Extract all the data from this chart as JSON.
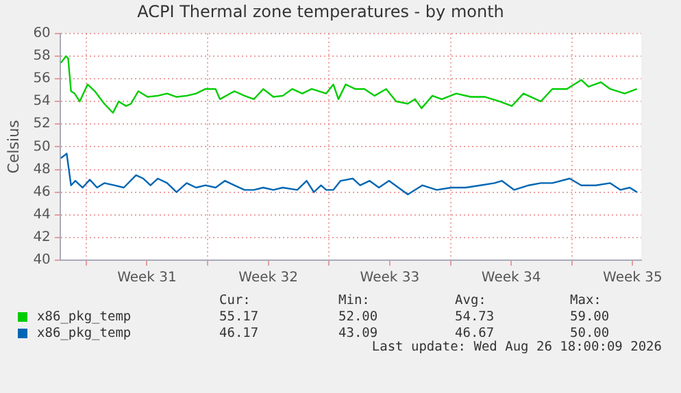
{
  "chart_data": {
    "type": "line",
    "title": "ACPI Thermal zone temperatures - by month",
    "ylabel": "Celsius",
    "xlim": [
      "2026-07-25T12:00",
      "2026-08-28T00:00"
    ],
    "xticks": [
      {
        "value": "2026-07-27",
        "label": null
      },
      {
        "value": "2026-07-30T12:00",
        "label": "Week 31"
      },
      {
        "value": "2026-08-03",
        "label": null
      },
      {
        "value": "2026-08-06T12:00",
        "label": "Week 32"
      },
      {
        "value": "2026-08-10",
        "label": null
      },
      {
        "value": "2026-08-13T12:00",
        "label": "Week 33"
      },
      {
        "value": "2026-08-17",
        "label": null
      },
      {
        "value": "2026-08-20T12:00",
        "label": "Week 34"
      },
      {
        "value": "2026-08-24",
        "label": null
      },
      {
        "value": "2026-08-27T12:00",
        "label": "Week 35"
      }
    ],
    "ylim": [
      40,
      60
    ],
    "yticks": [
      40,
      42,
      44,
      46,
      48,
      50,
      52,
      54,
      56,
      58,
      60
    ],
    "grid": true,
    "legend": "bottom",
    "marker": "none",
    "line_style": "solid",
    "series": [
      {
        "name": "x86_pkg_temp",
        "color": "#00cc00",
        "x": [
          "2026-07-25T13:00",
          "2026-07-25T20:00",
          "2026-07-25T23:00",
          "2026-07-26T03:00",
          "2026-07-26T08:00",
          "2026-07-26T15:00",
          "2026-07-27T02:00",
          "2026-07-27T12:00",
          "2026-07-28T01:00",
          "2026-07-28T13:00",
          "2026-07-28T21:00",
          "2026-07-29T07:00",
          "2026-07-29T14:00",
          "2026-07-30T00:00",
          "2026-07-30T13:00",
          "2026-07-31T03:00",
          "2026-07-31T16:00",
          "2026-08-01T05:00",
          "2026-08-01T19:00",
          "2026-08-02T08:00",
          "2026-08-02T21:00",
          "2026-08-03T11:00",
          "2026-08-03T17:00",
          "2026-08-04T13:00",
          "2026-08-05T03:00",
          "2026-08-05T16:00",
          "2026-08-06T05:00",
          "2026-08-06T19:00",
          "2026-08-07T08:00",
          "2026-08-07T21:00",
          "2026-08-08T11:00",
          "2026-08-09T00:00",
          "2026-08-09T20:00",
          "2026-08-10T06:00",
          "2026-08-10T13:00",
          "2026-08-10T23:00",
          "2026-08-11T12:00",
          "2026-08-12T01:00",
          "2026-08-12T15:00",
          "2026-08-13T07:00",
          "2026-08-13T21:00",
          "2026-08-14T13:00",
          "2026-08-14T23:00",
          "2026-08-15T08:00",
          "2026-08-15T23:00",
          "2026-08-16T12:00",
          "2026-08-17T08:00",
          "2026-08-18T04:00",
          "2026-08-19T00:00",
          "2026-08-19T20:00",
          "2026-08-20T13:00",
          "2026-08-21T05:00",
          "2026-08-22T05:00",
          "2026-08-22T21:00",
          "2026-08-23T17:00",
          "2026-08-24T13:00",
          "2026-08-24T23:00",
          "2026-08-25T16:00",
          "2026-08-26T05:00",
          "2026-08-27T01:00",
          "2026-08-27T18:00"
        ],
        "values": [
          57.4,
          58.0,
          57.8,
          54.9,
          54.7,
          54.0,
          55.5,
          54.9,
          53.8,
          53.0,
          54.0,
          53.6,
          53.8,
          54.9,
          54.4,
          54.5,
          54.7,
          54.4,
          54.5,
          54.7,
          55.1,
          55.1,
          54.2,
          54.9,
          54.5,
          54.2,
          55.1,
          54.4,
          54.5,
          55.1,
          54.7,
          55.1,
          54.7,
          55.5,
          54.2,
          55.5,
          55.1,
          55.1,
          54.5,
          55.1,
          54.0,
          53.8,
          54.2,
          53.4,
          54.5,
          54.2,
          54.7,
          54.4,
          54.4,
          54.0,
          53.6,
          54.7,
          54.0,
          55.1,
          55.1,
          55.9,
          55.3,
          55.7,
          55.1,
          54.7,
          55.1
        ]
      },
      {
        "name": "x86_pkg_temp",
        "color": "#0066b3",
        "x": [
          "2026-07-25T13:00",
          "2026-07-25T21:00",
          "2026-07-26T03:00",
          "2026-07-26T09:00",
          "2026-07-26T19:00",
          "2026-07-27T05:00",
          "2026-07-27T15:00",
          "2026-07-28T01:00",
          "2026-07-28T15:00",
          "2026-07-29T04:00",
          "2026-07-29T21:00",
          "2026-07-30T07:00",
          "2026-07-30T17:00",
          "2026-07-31T03:00",
          "2026-07-31T16:00",
          "2026-08-01T05:00",
          "2026-08-01T19:00",
          "2026-08-02T08:00",
          "2026-08-02T21:00",
          "2026-08-03T11:00",
          "2026-08-04T00:00",
          "2026-08-04T13:00",
          "2026-08-05T03:00",
          "2026-08-05T16:00",
          "2026-08-06T05:00",
          "2026-08-06T19:00",
          "2026-08-07T08:00",
          "2026-08-08T04:00",
          "2026-08-08T17:00",
          "2026-08-09T03:00",
          "2026-08-09T13:00",
          "2026-08-09T20:00",
          "2026-08-10T06:00",
          "2026-08-10T16:00",
          "2026-08-11T09:00",
          "2026-08-11T19:00",
          "2026-08-12T08:00",
          "2026-08-12T21:00",
          "2026-08-13T11:00",
          "2026-08-14T00:00",
          "2026-08-14T13:00",
          "2026-08-15T09:00",
          "2026-08-16T05:00",
          "2026-08-17T01:00",
          "2026-08-17T21:00",
          "2026-08-18T17:00",
          "2026-08-19T13:00",
          "2026-08-19T23:00",
          "2026-08-20T16:00",
          "2026-08-21T12:00",
          "2026-08-22T05:00",
          "2026-08-22T21:00",
          "2026-08-23T21:00",
          "2026-08-24T13:00",
          "2026-08-25T09:00",
          "2026-08-26T05:00",
          "2026-08-26T19:00",
          "2026-08-27T08:00",
          "2026-08-27T18:00"
        ],
        "values": [
          49.0,
          49.4,
          46.6,
          47.0,
          46.4,
          47.1,
          46.4,
          46.8,
          46.6,
          46.4,
          47.5,
          47.2,
          46.6,
          47.2,
          46.8,
          46.0,
          46.8,
          46.4,
          46.6,
          46.4,
          47.0,
          46.6,
          46.2,
          46.2,
          46.4,
          46.2,
          46.4,
          46.2,
          47.0,
          46.0,
          46.6,
          46.2,
          46.2,
          47.0,
          47.2,
          46.6,
          47.0,
          46.4,
          47.0,
          46.4,
          45.8,
          46.6,
          46.2,
          46.4,
          46.4,
          46.6,
          46.8,
          47.0,
          46.2,
          46.6,
          46.8,
          46.8,
          47.2,
          46.6,
          46.6,
          46.8,
          46.2,
          46.4,
          46.0
        ]
      }
    ],
    "annotations": [
      "Cur:",
      "Min:",
      "Avg:",
      "Max:",
      "55.17",
      "52.00",
      "54.73",
      "59.00",
      "46.17",
      "43.09",
      "46.67",
      "50.00",
      "Last update: Wed Aug 26 18:00:09 2026"
    ]
  }
}
